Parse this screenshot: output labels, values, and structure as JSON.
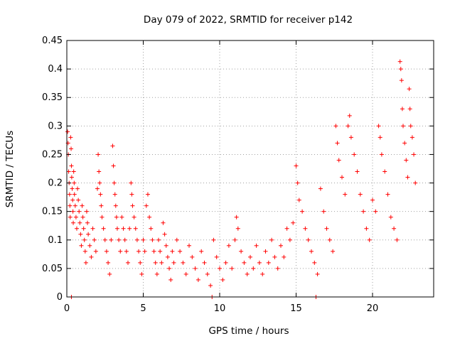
{
  "chart_data": {
    "type": "scatter",
    "title": "Day 079 of 2022, SRMTID for receiver p142",
    "xlabel": "GPS time / hours",
    "ylabel": "SRMTID / TECUs",
    "xlim": [
      0,
      24
    ],
    "ylim": [
      0,
      0.45
    ],
    "x_ticks": [
      0,
      5,
      10,
      15,
      20
    ],
    "x_tick_labels": [
      "0",
      "5",
      "10",
      "15",
      "20"
    ],
    "y_ticks": [
      0,
      0.05,
      0.1,
      0.15,
      0.2,
      0.25,
      0.3,
      0.35,
      0.4,
      0.45
    ],
    "y_tick_labels": [
      "0",
      "0.05",
      "0.1",
      "0.15",
      "0.2",
      "0.25",
      "0.3",
      "0.35",
      "0.4",
      "0.45"
    ],
    "grid": true,
    "marker": "+",
    "color": "#ff0000",
    "series": [
      {
        "name": "SRMTID",
        "points": [
          [
            0.05,
            0.29
          ],
          [
            0.08,
            0.27
          ],
          [
            0.1,
            0.25
          ],
          [
            0.12,
            0.22
          ],
          [
            0.15,
            0.2
          ],
          [
            0.18,
            0.18
          ],
          [
            0.2,
            0.16
          ],
          [
            0.22,
            0.14
          ],
          [
            0.25,
            0.28
          ],
          [
            0.28,
            0.26
          ],
          [
            0.3,
            0.23
          ],
          [
            0.32,
            0.21
          ],
          [
            0.35,
            0.19
          ],
          [
            0.38,
            0.17
          ],
          [
            0.4,
            0.15
          ],
          [
            0.42,
            0.13
          ],
          [
            0.45,
            0.22
          ],
          [
            0.48,
            0.2
          ],
          [
            0.5,
            0.18
          ],
          [
            0.55,
            0.16
          ],
          [
            0.6,
            0.14
          ],
          [
            0.65,
            0.12
          ],
          [
            0.7,
            0.19
          ],
          [
            0.75,
            0.17
          ],
          [
            0.8,
            0.15
          ],
          [
            0.85,
            0.13
          ],
          [
            0.9,
            0.11
          ],
          [
            0.95,
            0.09
          ],
          [
            1.0,
            0.16
          ],
          [
            1.05,
            0.14
          ],
          [
            1.1,
            0.12
          ],
          [
            1.15,
            0.1
          ],
          [
            1.2,
            0.08
          ],
          [
            1.25,
            0.06
          ],
          [
            1.3,
            0.15
          ],
          [
            1.35,
            0.13
          ],
          [
            1.4,
            0.11
          ],
          [
            1.5,
            0.09
          ],
          [
            1.6,
            0.07
          ],
          [
            1.7,
            0.12
          ],
          [
            1.8,
            0.1
          ],
          [
            1.9,
            0.08
          ],
          [
            2.0,
            0.19
          ],
          [
            2.05,
            0.25
          ],
          [
            2.1,
            0.22
          ],
          [
            2.15,
            0.2
          ],
          [
            2.2,
            0.18
          ],
          [
            2.25,
            0.16
          ],
          [
            2.3,
            0.14
          ],
          [
            2.4,
            0.12
          ],
          [
            2.5,
            0.1
          ],
          [
            2.6,
            0.08
          ],
          [
            2.7,
            0.06
          ],
          [
            2.8,
            0.04
          ],
          [
            2.9,
            0.1
          ],
          [
            3.0,
            0.265
          ],
          [
            3.05,
            0.23
          ],
          [
            3.1,
            0.2
          ],
          [
            3.15,
            0.18
          ],
          [
            3.2,
            0.16
          ],
          [
            3.25,
            0.14
          ],
          [
            3.3,
            0.12
          ],
          [
            3.4,
            0.1
          ],
          [
            3.5,
            0.08
          ],
          [
            3.6,
            0.14
          ],
          [
            3.7,
            0.12
          ],
          [
            3.8,
            0.1
          ],
          [
            3.9,
            0.08
          ],
          [
            4.0,
            0.06
          ],
          [
            4.1,
            0.12
          ],
          [
            4.2,
            0.2
          ],
          [
            4.25,
            0.18
          ],
          [
            4.3,
            0.16
          ],
          [
            4.4,
            0.14
          ],
          [
            4.5,
            0.12
          ],
          [
            4.6,
            0.1
          ],
          [
            4.7,
            0.08
          ],
          [
            4.8,
            0.06
          ],
          [
            4.9,
            0.04
          ],
          [
            5.0,
            0.1
          ],
          [
            5.1,
            0.08
          ],
          [
            5.2,
            0.16
          ],
          [
            5.3,
            0.18
          ],
          [
            5.4,
            0.14
          ],
          [
            5.5,
            0.12
          ],
          [
            5.6,
            0.1
          ],
          [
            5.7,
            0.08
          ],
          [
            5.8,
            0.06
          ],
          [
            5.9,
            0.04
          ],
          [
            6.0,
            0.1
          ],
          [
            6.1,
            0.08
          ],
          [
            6.2,
            0.06
          ],
          [
            6.3,
            0.13
          ],
          [
            6.4,
            0.11
          ],
          [
            6.5,
            0.09
          ],
          [
            6.6,
            0.07
          ],
          [
            6.7,
            0.05
          ],
          [
            6.8,
            0.03
          ],
          [
            6.9,
            0.08
          ],
          [
            7.0,
            0.06
          ],
          [
            7.2,
            0.1
          ],
          [
            7.4,
            0.08
          ],
          [
            7.6,
            0.06
          ],
          [
            7.8,
            0.04
          ],
          [
            8.0,
            0.09
          ],
          [
            8.2,
            0.07
          ],
          [
            8.4,
            0.05
          ],
          [
            8.6,
            0.03
          ],
          [
            8.8,
            0.08
          ],
          [
            9.0,
            0.06
          ],
          [
            9.2,
            0.04
          ],
          [
            9.4,
            0.02
          ],
          [
            9.6,
            0.1
          ],
          [
            9.8,
            0.07
          ],
          [
            10.0,
            0.05
          ],
          [
            10.2,
            0.03
          ],
          [
            10.4,
            0.06
          ],
          [
            10.6,
            0.09
          ],
          [
            10.8,
            0.05
          ],
          [
            11.0,
            0.1
          ],
          [
            11.1,
            0.14
          ],
          [
            11.2,
            0.12
          ],
          [
            11.4,
            0.08
          ],
          [
            11.6,
            0.06
          ],
          [
            11.8,
            0.04
          ],
          [
            12.0,
            0.07
          ],
          [
            12.2,
            0.05
          ],
          [
            12.4,
            0.09
          ],
          [
            12.6,
            0.06
          ],
          [
            12.8,
            0.04
          ],
          [
            13.0,
            0.08
          ],
          [
            13.2,
            0.06
          ],
          [
            13.4,
            0.1
          ],
          [
            13.6,
            0.07
          ],
          [
            13.8,
            0.05
          ],
          [
            14.0,
            0.09
          ],
          [
            14.2,
            0.07
          ],
          [
            14.4,
            0.12
          ],
          [
            14.6,
            0.1
          ],
          [
            14.8,
            0.13
          ],
          [
            15.0,
            0.23
          ],
          [
            15.1,
            0.2
          ],
          [
            15.2,
            0.17
          ],
          [
            15.4,
            0.15
          ],
          [
            15.6,
            0.12
          ],
          [
            15.8,
            0.1
          ],
          [
            16.0,
            0.08
          ],
          [
            16.2,
            0.06
          ],
          [
            16.4,
            0.04
          ],
          [
            16.6,
            0.19
          ],
          [
            16.8,
            0.15
          ],
          [
            17.0,
            0.12
          ],
          [
            17.2,
            0.1
          ],
          [
            17.4,
            0.08
          ],
          [
            17.6,
            0.3
          ],
          [
            17.7,
            0.27
          ],
          [
            17.8,
            0.24
          ],
          [
            18.0,
            0.21
          ],
          [
            18.2,
            0.18
          ],
          [
            18.4,
            0.3
          ],
          [
            18.5,
            0.318
          ],
          [
            18.6,
            0.28
          ],
          [
            18.8,
            0.25
          ],
          [
            19.0,
            0.22
          ],
          [
            19.2,
            0.18
          ],
          [
            19.4,
            0.15
          ],
          [
            19.6,
            0.12
          ],
          [
            19.8,
            0.1
          ],
          [
            20.0,
            0.17
          ],
          [
            20.2,
            0.15
          ],
          [
            20.4,
            0.3
          ],
          [
            20.5,
            0.28
          ],
          [
            20.6,
            0.25
          ],
          [
            20.8,
            0.22
          ],
          [
            21.0,
            0.18
          ],
          [
            21.2,
            0.14
          ],
          [
            21.4,
            0.12
          ],
          [
            21.6,
            0.1
          ],
          [
            21.8,
            0.413
          ],
          [
            21.85,
            0.4
          ],
          [
            21.9,
            0.38
          ],
          [
            21.95,
            0.33
          ],
          [
            22.0,
            0.3
          ],
          [
            22.1,
            0.27
          ],
          [
            22.2,
            0.24
          ],
          [
            22.3,
            0.21
          ],
          [
            22.4,
            0.365
          ],
          [
            22.45,
            0.33
          ],
          [
            22.5,
            0.3
          ],
          [
            22.6,
            0.28
          ],
          [
            22.7,
            0.25
          ],
          [
            22.8,
            0.2
          ]
        ],
        "bottom_points": [
          [
            0.3,
            0.0
          ],
          [
            9.5,
            0.0
          ],
          [
            16.3,
            0.0
          ]
        ]
      }
    ]
  }
}
